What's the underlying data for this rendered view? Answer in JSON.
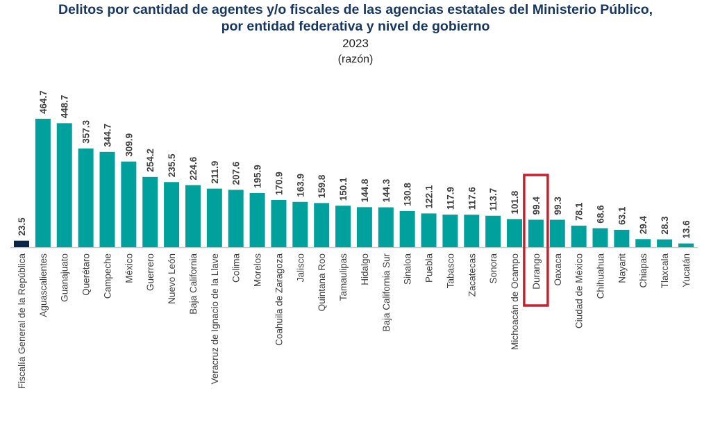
{
  "chart_data": {
    "type": "bar",
    "title_line1": "Delitos por cantidad de agentes y/o fiscales de las agencias estatales del Ministerio Público,",
    "title_line2": "por entidad federativa y nivel de gobierno",
    "subtitle_year": "2023",
    "subtitle_unit": "(razón)",
    "categories": [
      "Fiscalía General de la República",
      "Aguascalientes",
      "Guanajuato",
      "Querétaro",
      "Campeche",
      "México",
      "Guerrero",
      "Nuevo León",
      "Baja California",
      "Veracruz de Ignacio de la Llave",
      "Colima",
      "Morelos",
      "Coahuila de Zaragoza",
      "Jalisco",
      "Quintana Roo",
      "Tamaulipas",
      "Hidalgo",
      "Baja California Sur",
      "Sinaloa",
      "Puebla",
      "Tabasco",
      "Zacatecas",
      "Sonora",
      "Michoacán de Ocampo",
      "Durango",
      "Oaxaca",
      "Ciudad de México",
      "Chihuahua",
      "Nayarit",
      "Chiapas",
      "Tlaxcala",
      "Yucatán"
    ],
    "values": [
      23.5,
      464.7,
      448.7,
      357.3,
      344.7,
      309.9,
      254.2,
      235.5,
      224.6,
      211.9,
      207.6,
      195.9,
      170.9,
      163.9,
      159.8,
      150.1,
      144.8,
      144.3,
      130.8,
      122.1,
      117.9,
      117.6,
      113.7,
      101.8,
      99.4,
      99.3,
      78.1,
      68.6,
      63.1,
      29.4,
      28.3,
      13.6
    ],
    "data_labels": [
      "23.5",
      "464.7",
      "448.7",
      "357.3",
      "344.7",
      "309.9",
      "254.2",
      "235.5",
      "224.6",
      "211.9",
      "207.6",
      "195.9",
      "170.9",
      "163.9",
      "159.8",
      "150.1",
      "144.8",
      "144.3",
      "130.8",
      "122.1",
      "117.9",
      "117.6",
      "113.7",
      "101.8",
      "99.4",
      "99.3",
      "78.1",
      "68.6",
      "63.1",
      "29.4",
      "28.3",
      "13.6"
    ],
    "highlighted_category": "Durango",
    "colors": {
      "state": "#00a19c",
      "federal": "#0b2545",
      "highlight_box": "#c8202f",
      "title": "#17375e"
    },
    "ylim": [
      0,
      470
    ],
    "grid": false,
    "legend": "none"
  }
}
